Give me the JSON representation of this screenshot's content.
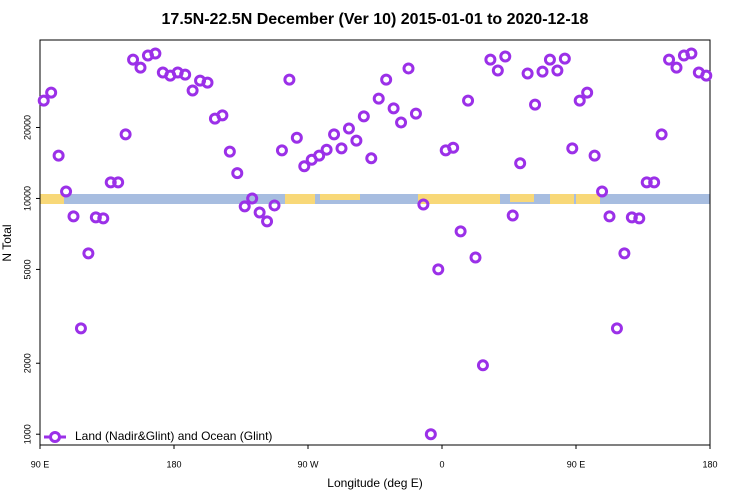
{
  "chart_data": {
    "type": "scatter",
    "title": "17.5N-22.5N December (Ver 10)   2015-01-01 to 2020-12-18",
    "x_label": "Longitude (deg E)",
    "y_label": "N Total",
    "log_y": true,
    "legend_position": "lower left",
    "xlim": [
      90,
      540
    ],
    "xticks": [
      {
        "value": 90,
        "label": "90 E"
      },
      180,
      {
        "value": 270,
        "label": "90 W"
      },
      {
        "value": 360,
        "label": "0"
      },
      {
        "value": 450,
        "label": "90 E"
      },
      {
        "value": 540,
        "label": "180"
      }
    ],
    "ylim": [
      900,
      47000
    ],
    "yticks": [
      1000,
      2000,
      5000,
      10000,
      20000
    ],
    "series": [
      {
        "name": "Land (Nadir&Glint) and Ocean (Glint)",
        "color": "#9b30e8",
        "x": [
          92.5,
          97.5,
          102.5,
          107.5,
          112.5,
          117.5,
          122.5,
          127.5,
          132.5,
          137.5,
          142.5,
          147.5,
          152.5,
          157.5,
          162.5,
          167.5,
          172.5,
          177.5,
          182.5,
          187.5,
          192.5,
          197.5,
          202.5,
          207.5,
          212.5,
          217.5,
          222.5,
          227.5,
          232.5,
          237.5,
          242.5,
          247.5,
          252.5,
          257.5,
          262.5,
          267.5,
          272.5,
          277.5,
          282.5,
          287.5,
          292.5,
          297.5,
          302.5,
          307.5,
          312.5,
          317.5,
          322.5,
          327.5,
          332.5,
          337.5,
          342.5,
          347.5,
          352.5,
          357.5,
          362.5,
          367.5,
          372.5,
          377.5,
          382.5,
          387.5,
          392.5,
          397.5,
          402.5,
          407.5,
          412.5,
          417.5,
          422.5,
          427.5,
          432.5,
          437.5,
          442.5,
          447.5,
          452.5,
          457.5,
          462.5,
          467.5,
          472.5,
          477.5,
          482.5,
          487.5,
          492.5,
          497.5,
          502.5,
          507.5,
          512.5,
          517.5,
          522.5,
          527.5,
          532.5,
          537.5
        ],
        "values": [
          26000,
          28100,
          15200,
          10700,
          8390,
          2810,
          5850,
          8310,
          8230,
          11700,
          11700,
          18700,
          38800,
          35900,
          40400,
          41200,
          34200,
          33200,
          34200,
          33500,
          28700,
          31600,
          31000,
          21800,
          22500,
          15800,
          12800,
          9250,
          10000,
          8720,
          7990,
          9340,
          16000,
          31900,
          18100,
          13700,
          14600,
          15200,
          16100,
          18700,
          16300,
          19800,
          17600,
          22300,
          14800,
          26500,
          31900,
          24100,
          21000,
          35600,
          22900,
          9430,
          1000,
          5000,
          16000,
          16400,
          7250,
          26000,
          5620,
          1960,
          38800,
          34900,
          40000,
          8470,
          14100,
          33900,
          25000,
          34500,
          38800,
          34900,
          39200,
          16300,
          26000,
          28100,
          15200,
          10700,
          8390,
          2810,
          5850,
          8310,
          8230,
          11700,
          11700,
          18700,
          38800,
          35900,
          40400,
          41200,
          34200,
          33200
        ]
      }
    ]
  }
}
